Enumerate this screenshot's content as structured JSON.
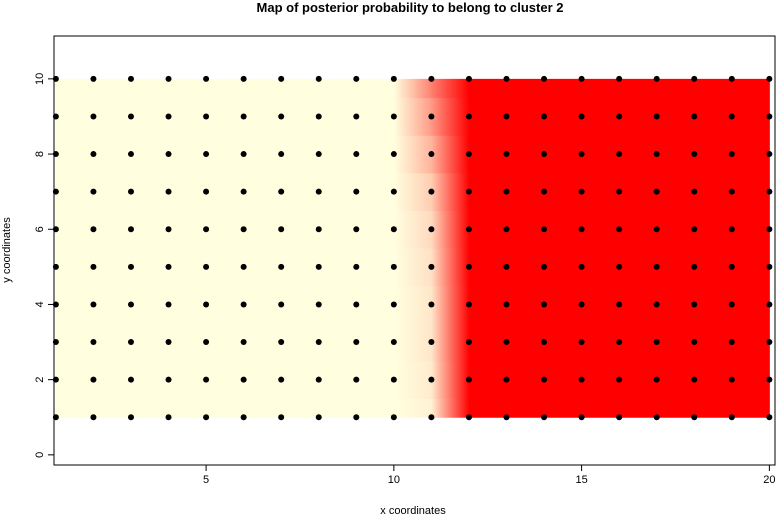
{
  "chart_data": {
    "type": "probability-map",
    "title": "Map of posterior probability to belong to cluster  2",
    "x_label": "x coordinates",
    "y_label": "y coordinates",
    "x": [
      1,
      2,
      3,
      4,
      5,
      6,
      7,
      8,
      9,
      10,
      11,
      12,
      13,
      14,
      15,
      16,
      17,
      18,
      19,
      20
    ],
    "y": [
      1,
      2,
      3,
      4,
      5,
      6,
      7,
      8,
      9,
      10
    ],
    "z": [
      [
        0,
        0,
        0,
        0,
        0,
        0,
        0,
        0,
        0,
        0,
        0.05,
        1,
        1,
        1,
        1,
        1,
        1,
        1,
        1,
        1
      ],
      [
        0,
        0,
        0,
        0,
        0,
        0,
        0,
        0,
        0,
        0,
        0.08,
        1,
        1,
        1,
        1,
        1,
        1,
        1,
        1,
        1
      ],
      [
        0,
        0,
        0,
        0,
        0,
        0,
        0,
        0,
        0,
        0,
        0.1,
        1,
        1,
        1,
        1,
        1,
        1,
        1,
        1,
        1
      ],
      [
        0,
        0,
        0,
        0,
        0,
        0,
        0,
        0,
        0,
        0,
        0.1,
        1,
        1,
        1,
        1,
        1,
        1,
        1,
        1,
        1
      ],
      [
        0,
        0,
        0,
        0,
        0,
        0,
        0,
        0,
        0,
        0,
        0.12,
        1,
        1,
        1,
        1,
        1,
        1,
        1,
        1,
        1
      ],
      [
        0,
        0,
        0,
        0,
        0,
        0,
        0,
        0,
        0,
        0,
        0.15,
        1,
        1,
        1,
        1,
        1,
        1,
        1,
        1,
        1
      ],
      [
        0,
        0,
        0,
        0,
        0,
        0,
        0,
        0,
        0,
        0,
        0.2,
        1,
        1,
        1,
        1,
        1,
        1,
        1,
        1,
        1
      ],
      [
        0,
        0,
        0,
        0,
        0,
        0,
        0,
        0,
        0,
        0,
        0.3,
        1,
        1,
        1,
        1,
        1,
        1,
        1,
        1,
        1
      ],
      [
        0,
        0,
        0,
        0,
        0,
        0,
        0,
        0,
        0,
        0,
        0.4,
        1,
        1,
        1,
        1,
        1,
        1,
        1,
        1,
        1
      ],
      [
        0,
        0,
        0,
        0,
        0,
        0,
        0,
        0,
        0,
        0,
        0.5,
        1,
        1,
        1,
        1,
        1,
        1,
        1,
        1,
        1
      ]
    ],
    "low_color": "#FFFFDF",
    "high_color": "#FF0000",
    "point_color": "#000000",
    "xlim": [
      0.95,
      20.15
    ],
    "ylim": [
      -0.27,
      11.14
    ],
    "xticks": [
      5,
      10,
      15,
      20
    ],
    "yticks": [
      0,
      2,
      4,
      6,
      8,
      10
    ]
  }
}
